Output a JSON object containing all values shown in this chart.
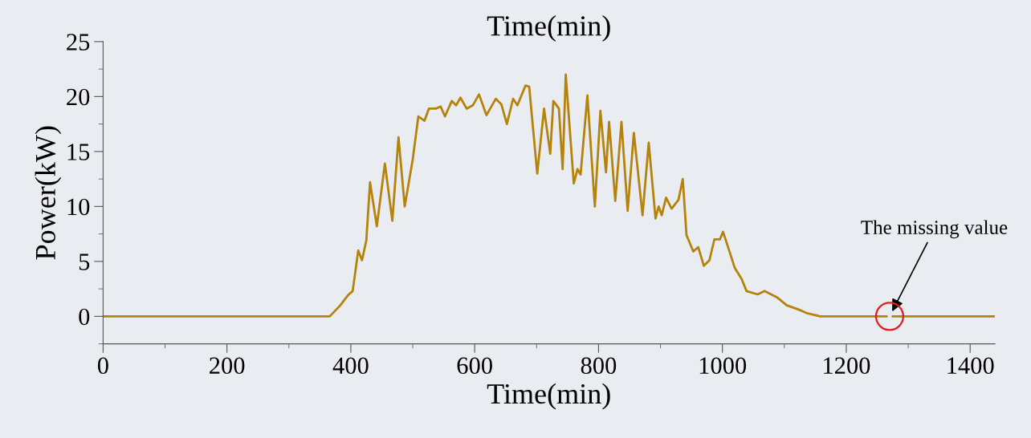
{
  "chart_data": {
    "type": "line",
    "title": "Time(min)",
    "xlabel": "Time(min)",
    "ylabel": "Power(kW)",
    "xlim": [
      0,
      1440
    ],
    "ylim": [
      -2.5,
      25
    ],
    "xticks": [
      0,
      {
        "value": 100,
        "label": null
      },
      200,
      {
        "value": 300,
        "label": null
      },
      400,
      {
        "value": 500,
        "label": null
      },
      600,
      {
        "value": 700,
        "label": null
      },
      800,
      {
        "value": 900,
        "label": null
      },
      1000,
      {
        "value": 1100,
        "label": null
      },
      1200,
      {
        "value": 1300,
        "label": null
      },
      1400
    ],
    "yticks": [
      {
        "value": -2.5,
        "label": null
      },
      0,
      {
        "value": 2.5,
        "label": null
      },
      5,
      {
        "value": 7.5,
        "label": null
      },
      10,
      {
        "value": 12.5,
        "label": null
      },
      15,
      {
        "value": 17.5,
        "label": null
      },
      20,
      {
        "value": 22.5,
        "label": null
      },
      25
    ],
    "grid": false,
    "legend": false,
    "marker": "none",
    "line_style": "solid",
    "annotations": [
      {
        "text": "The missing value",
        "x": 1270,
        "y": 0
      }
    ],
    "series": [
      {
        "color": "#b5820a",
        "x": [
          0,
          366,
          383,
          395,
          403,
          412,
          418,
          425,
          431,
          442,
          455,
          467,
          477,
          487,
          500,
          509,
          519,
          526,
          537,
          545,
          552,
          563,
          570,
          577,
          587,
          597,
          607,
          619,
          634,
          643,
          652,
          662,
          669,
          682,
          688,
          701,
          712,
          722,
          727,
          736,
          742,
          747,
          760,
          766,
          771,
          782,
          794,
          803,
          812,
          817,
          827,
          837,
          847,
          857,
          871,
          881,
          892,
          897,
          902,
          909,
          918,
          929,
          936,
          942,
          953,
          961,
          970,
          979,
          987,
          996,
          1001,
          1012,
          1020,
          1031,
          1039,
          1057,
          1068,
          1089,
          1104,
          1124,
          1136,
          1158,
          1265,
          1270,
          1275,
          1438
        ],
        "values": [
          0,
          0,
          1.0,
          1.9,
          2.3,
          6.0,
          5.1,
          6.9,
          12.2,
          8.2,
          13.9,
          8.7,
          16.3,
          10.0,
          14.3,
          18.2,
          17.8,
          18.9,
          18.9,
          19.1,
          18.2,
          19.6,
          19.2,
          19.9,
          18.9,
          19.2,
          20.2,
          18.3,
          19.8,
          19.3,
          17.5,
          19.8,
          19.2,
          21.0,
          20.9,
          13.0,
          18.9,
          14.8,
          19.6,
          18.9,
          13.4,
          22.0,
          12.1,
          13.4,
          12.9,
          20.1,
          10.0,
          18.7,
          13.1,
          17.7,
          10.5,
          17.7,
          9.6,
          16.7,
          9.2,
          15.8,
          8.9,
          10.0,
          9.2,
          10.8,
          9.8,
          10.6,
          12.5,
          7.4,
          5.9,
          6.3,
          4.6,
          5.1,
          7.0,
          7.0,
          7.7,
          5.8,
          4.4,
          3.4,
          2.3,
          2.0,
          2.3,
          1.7,
          1.0,
          0.6,
          0.3,
          0,
          0,
          null,
          0,
          0
        ]
      }
    ]
  }
}
